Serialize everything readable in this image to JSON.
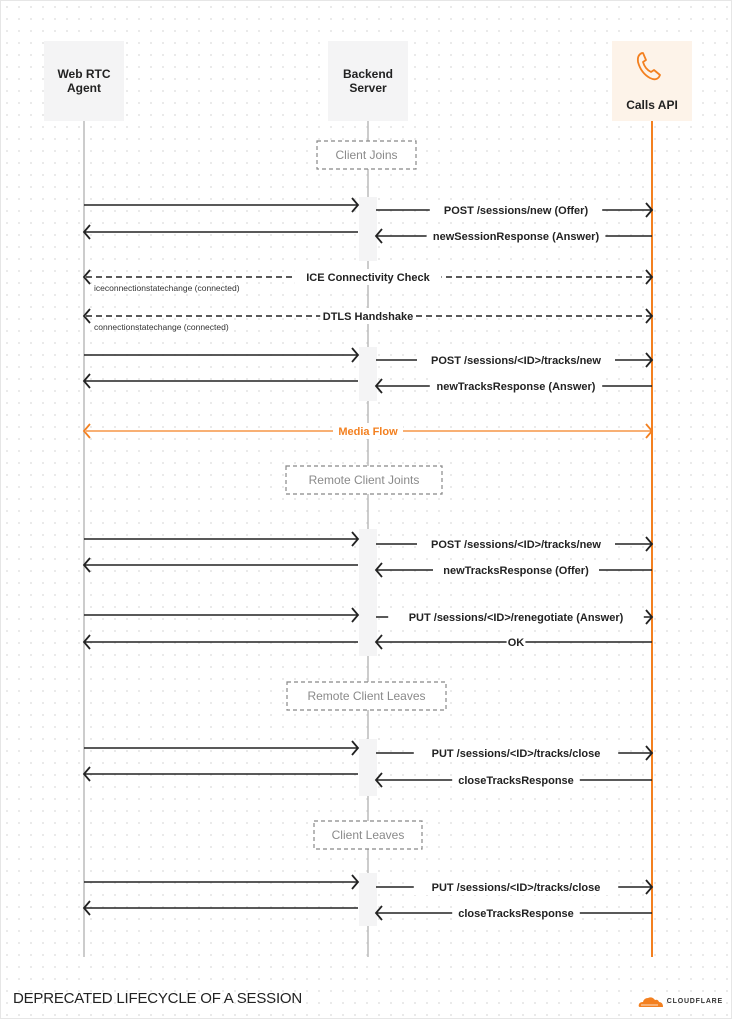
{
  "participants": [
    {
      "id": "agent",
      "label_line1": "Web RTC",
      "label_line2": "Agent"
    },
    {
      "id": "backend",
      "label_line1": "Backend",
      "label_line2": "Server"
    },
    {
      "id": "calls",
      "label_line1": "Calls API",
      "label_line2": "",
      "icon": "phone-icon"
    }
  ],
  "sections": [
    "Client Joins",
    "Remote Client Joints",
    "Remote Client Leaves",
    "Client Leaves"
  ],
  "messages": [
    {
      "from": "agent",
      "to": "backend",
      "label": ""
    },
    {
      "from": "backend",
      "to": "agent",
      "label": ""
    },
    {
      "from": "backend",
      "to": "calls",
      "label": "POST /sessions/new (Offer)"
    },
    {
      "from": "calls",
      "to": "backend",
      "label": "newSessionResponse (Answer)"
    },
    {
      "from": "agent",
      "to": "calls",
      "both": true,
      "style": "dashed",
      "label": "ICE Connectivity Check",
      "note": "iceconnectionstatechange (connected)"
    },
    {
      "from": "agent",
      "to": "calls",
      "both": true,
      "style": "dashed",
      "label": "DTLS Handshake",
      "note": "connectionstatechange (connected)"
    },
    {
      "from": "agent",
      "to": "backend",
      "label": ""
    },
    {
      "from": "backend",
      "to": "agent",
      "label": ""
    },
    {
      "from": "backend",
      "to": "calls",
      "label": "POST /sessions/<ID>/tracks/new"
    },
    {
      "from": "calls",
      "to": "backend",
      "label": "newTracksResponse (Answer)"
    },
    {
      "from": "agent",
      "to": "calls",
      "both": true,
      "style": "accent",
      "label": "Media Flow"
    },
    {
      "from": "agent",
      "to": "backend",
      "label": ""
    },
    {
      "from": "backend",
      "to": "agent",
      "label": ""
    },
    {
      "from": "backend",
      "to": "calls",
      "label": "POST /sessions/<ID>/tracks/new"
    },
    {
      "from": "calls",
      "to": "backend",
      "label": "newTracksResponse (Offer)"
    },
    {
      "from": "agent",
      "to": "backend",
      "label": ""
    },
    {
      "from": "backend",
      "to": "agent",
      "label": ""
    },
    {
      "from": "backend",
      "to": "calls",
      "label": "PUT /sessions/<ID>/renegotiate (Answer)"
    },
    {
      "from": "calls",
      "to": "backend",
      "label": "OK"
    },
    {
      "from": "agent",
      "to": "backend",
      "label": ""
    },
    {
      "from": "backend",
      "to": "agent",
      "label": ""
    },
    {
      "from": "backend",
      "to": "calls",
      "label": "PUT /sessions/<ID>/tracks/close"
    },
    {
      "from": "calls",
      "to": "backend",
      "label": "closeTracksResponse"
    },
    {
      "from": "agent",
      "to": "backend",
      "label": ""
    },
    {
      "from": "backend",
      "to": "agent",
      "label": ""
    },
    {
      "from": "backend",
      "to": "calls",
      "label": "PUT /sessions/<ID>/tracks/close"
    },
    {
      "from": "calls",
      "to": "backend",
      "label": "closeTracksResponse"
    }
  ],
  "footer": {
    "title": "DEPRECATED LIFECYCLE OF A SESSION",
    "logo": "CLOUDFLARE"
  },
  "colors": {
    "accent": "#f38020",
    "line": "#222222",
    "lifeline": "#bbbbbb",
    "header_bg": "#f4f4f5",
    "calls_bg": "#fdf3e9",
    "section_text": "#8a8a8a"
  }
}
